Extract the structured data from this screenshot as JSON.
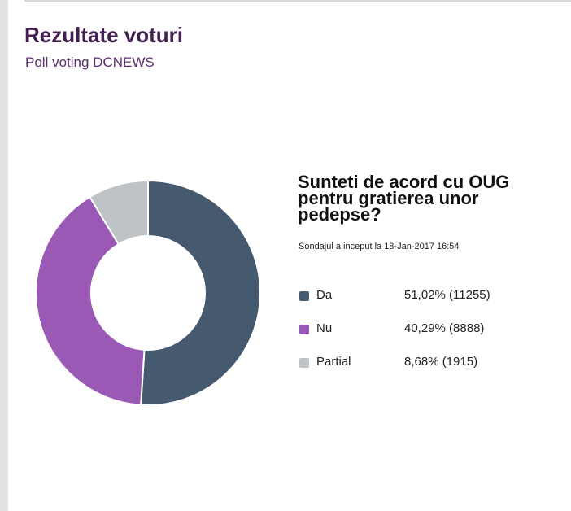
{
  "header": {
    "title": "Rezultate voturi",
    "subtitle": "Poll voting DCNEWS"
  },
  "poll": {
    "question": "Sunteti de acord cu OUG pentru gratierea unor pedepse?",
    "started": "Sondajul a inceput la 18-Jan-2017 16:54"
  },
  "chart_data": {
    "type": "pie",
    "donut": true,
    "categories": [
      "Da",
      "Nu",
      "Partial"
    ],
    "values": [
      51.02,
      40.29,
      8.68
    ],
    "counts": [
      11255,
      8888,
      1915
    ],
    "value_labels": [
      "51,02% (11255)",
      "40,29% (8888)",
      "8,68% (1915)"
    ],
    "colors": [
      "#465a6f",
      "#9b59b6",
      "#bdc3c7"
    ],
    "title": "",
    "legend_position": "right"
  }
}
